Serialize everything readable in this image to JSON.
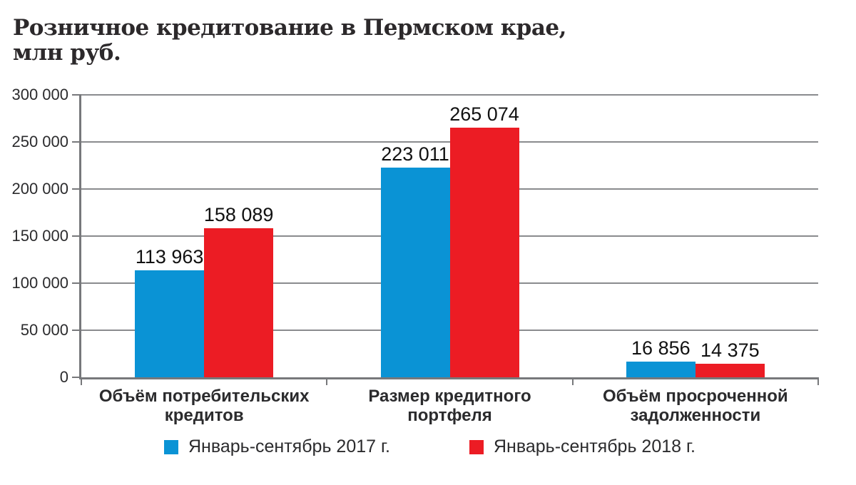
{
  "title": {
    "line1": "Розничное кредитование в Пермском крае,",
    "line2": "млн руб."
  },
  "chart_data": {
    "type": "bar",
    "title": "Розничное кредитование в Пермском крае, млн руб.",
    "categories": [
      "Объём потребительских\nкредитов",
      "Размер кредитного\nпортфеля",
      "Объём просроченной\nзадолженности"
    ],
    "series": [
      {
        "name": "Январь-сентябрь 2017 г.",
        "color": "#0a93d5",
        "values": [
          113963,
          223011,
          16856
        ],
        "labels": [
          "113 963",
          "223 011",
          "16 856"
        ]
      },
      {
        "name": "Январь-сентябрь 2018 г.",
        "color": "#ec1c24",
        "values": [
          158089,
          265074,
          14375
        ],
        "labels": [
          "158 089",
          "265 074",
          "14 375"
        ]
      }
    ],
    "ylim": [
      0,
      300000
    ],
    "yticks": [
      0,
      50000,
      100000,
      150000,
      200000,
      250000,
      300000
    ],
    "ytick_labels": [
      "0",
      "50 000",
      "100 000",
      "150 000",
      "200 000",
      "250 000",
      "300 000"
    ],
    "grid": true,
    "legend_position": "bottom",
    "colors": {
      "grid": "#8a8b8e",
      "axis": "#77787b",
      "text": "#2b2b2d",
      "title": "#2c292b",
      "value_label": "#111111"
    }
  }
}
